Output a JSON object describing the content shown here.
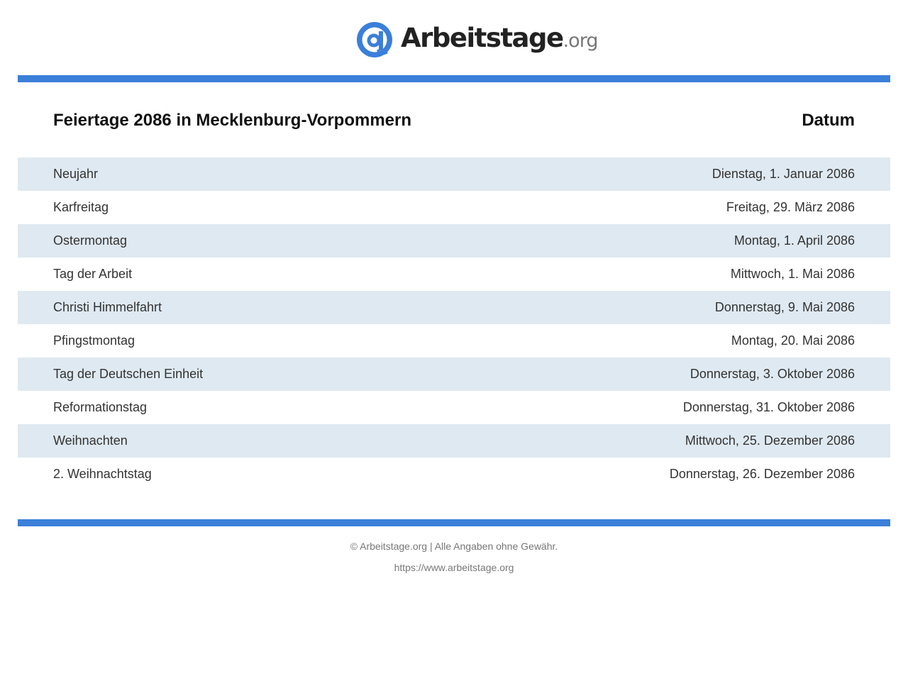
{
  "header": {
    "logo_name": "Arbeitstage",
    "logo_tld": ".org",
    "logo_icon": "at-sign-icon",
    "brand_color": "#3b7fd9"
  },
  "table": {
    "title": "Feiertage 2086 in Mecklenburg-Vorpommern",
    "date_header": "Datum",
    "rows": [
      {
        "name": "Neujahr",
        "date": "Dienstag, 1. Januar 2086"
      },
      {
        "name": "Karfreitag",
        "date": "Freitag, 29. März 2086"
      },
      {
        "name": "Ostermontag",
        "date": "Montag, 1. April 2086"
      },
      {
        "name": "Tag der Arbeit",
        "date": "Mittwoch, 1. Mai 2086"
      },
      {
        "name": "Christi Himmelfahrt",
        "date": "Donnerstag, 9. Mai 2086"
      },
      {
        "name": "Pfingstmontag",
        "date": "Montag, 20. Mai 2086"
      },
      {
        "name": "Tag der Deutschen Einheit",
        "date": "Donnerstag, 3. Oktober 2086"
      },
      {
        "name": "Reformationstag",
        "date": "Donnerstag, 31. Oktober 2086"
      },
      {
        "name": "Weihnachten",
        "date": "Mittwoch, 25. Dezember 2086"
      },
      {
        "name": "2. Weihnachtstag",
        "date": "Donnerstag, 26. Dezember 2086"
      }
    ]
  },
  "footer": {
    "copyright": "© Arbeitstage.org | Alle Angaben ohne Gewähr.",
    "url": "https://www.arbeitstage.org"
  }
}
